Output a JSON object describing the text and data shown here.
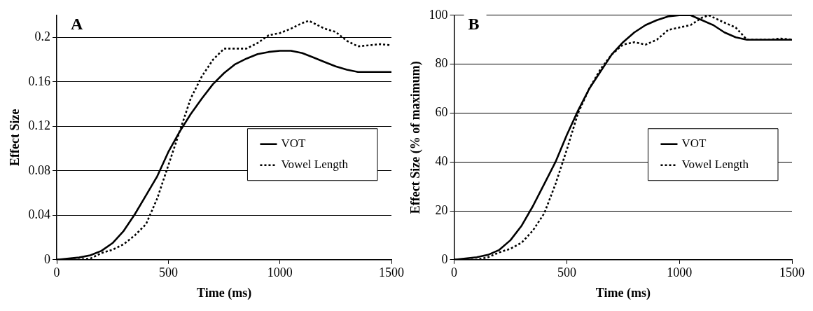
{
  "chart_data": [
    {
      "type": "line",
      "title": "A",
      "xlabel": "Time (ms)",
      "ylabel": "Effect Size",
      "xlim": [
        0,
        1500
      ],
      "xticks": [
        0,
        500,
        1000,
        1500
      ],
      "ylim": [
        0,
        0.22
      ],
      "yticks": [
        0,
        0.04,
        0.08,
        0.12,
        0.16,
        0.2
      ],
      "grid": "y",
      "legend": "right",
      "marker": "none",
      "series": [
        {
          "name": "VOT",
          "color": "#000000",
          "line_style": "solid",
          "x": [
            0,
            100,
            150,
            200,
            250,
            300,
            350,
            400,
            450,
            500,
            550,
            600,
            650,
            700,
            750,
            800,
            850,
            900,
            950,
            1000,
            1050,
            1100,
            1150,
            1200,
            1250,
            1300,
            1350,
            1400,
            1450,
            1500
          ],
          "values": [
            0,
            0.002,
            0.004,
            0.008,
            0.015,
            0.026,
            0.041,
            0.058,
            0.075,
            0.097,
            0.115,
            0.131,
            0.145,
            0.158,
            0.168,
            0.176,
            0.181,
            0.185,
            0.187,
            0.188,
            0.188,
            0.186,
            0.182,
            0.178,
            0.174,
            0.171,
            0.169,
            0.169,
            0.169,
            0.169
          ]
        },
        {
          "name": "Vowel Length",
          "color": "#000000",
          "line_style": "dotted",
          "x": [
            0,
            100,
            150,
            200,
            250,
            300,
            350,
            400,
            450,
            500,
            550,
            600,
            650,
            700,
            750,
            800,
            850,
            900,
            950,
            1000,
            1050,
            1100,
            1130,
            1200,
            1250,
            1300,
            1350,
            1400,
            1450,
            1500
          ],
          "values": [
            0,
            0,
            0.001,
            0.006,
            0.009,
            0.014,
            0.022,
            0.032,
            0.055,
            0.085,
            0.115,
            0.145,
            0.165,
            0.18,
            0.19,
            0.19,
            0.19,
            0.195,
            0.202,
            0.204,
            0.208,
            0.213,
            0.215,
            0.208,
            0.205,
            0.197,
            0.192,
            0.193,
            0.194,
            0.193
          ]
        }
      ]
    },
    {
      "type": "line",
      "title": "B",
      "xlabel": "Time (ms)",
      "ylabel": "Effect Size (% of maximum)",
      "xlim": [
        0,
        1500
      ],
      "xticks": [
        0,
        500,
        1000,
        1500
      ],
      "ylim": [
        0,
        100
      ],
      "yticks": [
        0,
        20,
        40,
        60,
        80,
        100
      ],
      "grid": "y",
      "legend": "right",
      "marker": "none",
      "series": [
        {
          "name": "VOT",
          "color": "#000000",
          "line_style": "solid",
          "x": [
            0,
            100,
            150,
            200,
            250,
            300,
            350,
            400,
            450,
            500,
            550,
            600,
            650,
            700,
            750,
            800,
            850,
            900,
            950,
            1000,
            1050,
            1100,
            1150,
            1200,
            1250,
            1300,
            1350,
            1400,
            1450,
            1500
          ],
          "values": [
            0,
            1,
            2,
            4,
            8,
            14,
            22,
            31,
            40,
            51,
            61,
            70,
            77,
            84,
            89,
            93,
            96,
            98,
            99.5,
            100,
            100,
            98,
            96,
            93,
            91,
            90,
            90,
            90,
            90,
            90
          ]
        },
        {
          "name": "Vowel Length",
          "color": "#000000",
          "line_style": "dotted",
          "x": [
            0,
            100,
            150,
            200,
            250,
            300,
            350,
            400,
            450,
            500,
            550,
            600,
            650,
            700,
            750,
            800,
            850,
            900,
            950,
            1000,
            1050,
            1100,
            1130,
            1200,
            1250,
            1300,
            1350,
            1400,
            1450,
            1500
          ],
          "values": [
            0,
            0,
            1,
            3,
            4.5,
            7,
            12,
            19,
            31,
            45,
            60,
            70,
            78,
            84,
            88,
            89,
            88,
            90,
            94,
            95,
            96,
            99,
            100,
            97,
            95,
            90,
            90,
            90,
            90.5,
            90
          ]
        }
      ]
    }
  ]
}
